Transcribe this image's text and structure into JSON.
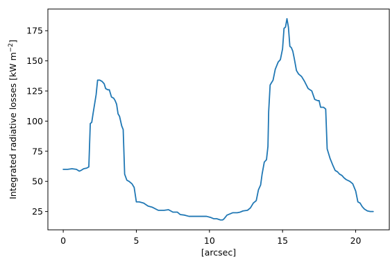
{
  "chart_data": {
    "type": "line",
    "title": "",
    "xlabel": "[arcsec]",
    "ylabel": "Integrated radiative losses [kW m",
    "ylabel_sup": "−2",
    "ylabel_end": "]",
    "xlim": [
      -1.05,
      22.3
    ],
    "ylim": [
      9.8,
      193
    ],
    "xticks": [
      0,
      5,
      10,
      15,
      20
    ],
    "yticks": [
      25,
      50,
      75,
      100,
      125,
      150,
      175
    ],
    "grid": false,
    "legend": "none",
    "line_color": "#1f77b4",
    "series": [
      {
        "x": [
          0.0,
          0.3,
          0.6,
          0.9,
          1.1,
          1.2,
          1.4,
          1.6,
          1.75,
          1.85,
          1.95,
          2.05,
          2.25,
          2.35,
          2.5,
          2.65,
          2.8,
          2.9,
          3.05,
          3.15,
          3.3,
          3.45,
          3.55,
          3.65,
          3.75,
          3.85,
          4.0,
          4.1,
          4.2,
          4.35,
          4.5,
          4.7,
          4.85,
          5.0,
          5.2,
          5.5,
          5.8,
          6.1,
          6.5,
          6.9,
          7.2,
          7.5,
          7.8,
          8.0,
          8.3,
          8.6,
          9.0,
          9.5,
          9.8,
          10.1,
          10.3,
          10.5,
          10.75,
          10.9,
          11.0,
          11.2,
          11.4,
          11.6,
          11.9,
          12.1,
          12.3,
          12.6,
          12.8,
          13.0,
          13.2,
          13.35,
          13.5,
          13.6,
          13.75,
          13.9,
          14.0,
          14.05,
          14.15,
          14.25,
          14.35,
          14.5,
          14.7,
          14.85,
          15.0,
          15.1,
          15.2,
          15.3,
          15.4,
          15.5,
          15.6,
          15.7,
          15.8,
          15.95,
          16.1,
          16.3,
          16.5,
          16.75,
          17.0,
          17.2,
          17.4,
          17.5,
          17.6,
          17.8,
          17.95,
          18.05,
          18.25,
          18.35,
          18.45,
          18.6,
          18.75,
          18.9,
          19.05,
          19.2,
          19.35,
          19.6,
          19.8,
          20.0,
          20.15,
          20.3,
          20.45,
          20.6,
          20.8,
          21.0,
          21.2
        ],
        "values": [
          60,
          60,
          60.5,
          60,
          58.5,
          59,
          60.5,
          61,
          62,
          98,
          99,
          107,
          122,
          134,
          134,
          133,
          131,
          127,
          126,
          126,
          120,
          119,
          117,
          114,
          106,
          104,
          96,
          93,
          56,
          51,
          50,
          48,
          45,
          33,
          33,
          32,
          29.5,
          28.5,
          26,
          26,
          26.5,
          24.5,
          24.5,
          22.5,
          22,
          21,
          21,
          21,
          21,
          20,
          19,
          19,
          18,
          18,
          19,
          22,
          23,
          24,
          24,
          24.5,
          25.5,
          26,
          28,
          32,
          34,
          43,
          47,
          56,
          66,
          68,
          79,
          108,
          130,
          132,
          134,
          143,
          149,
          151,
          160,
          177,
          178,
          185,
          178,
          162,
          161,
          158,
          152,
          142,
          139,
          137,
          133,
          127,
          125,
          118,
          117,
          117,
          111.5,
          111.5,
          110,
          77,
          69,
          66,
          63,
          59,
          58,
          56,
          55,
          53,
          51.5,
          50,
          48,
          42,
          33,
          32,
          29,
          27,
          25.5,
          25,
          25
        ]
      }
    ]
  }
}
